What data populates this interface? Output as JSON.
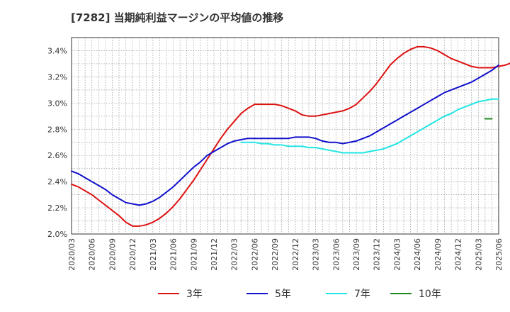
{
  "title": "[7282]  当期純利益マージンの平均値の推移",
  "chart_data": {
    "type": "line",
    "x_ticks": [
      "2020/03",
      "2020/06",
      "2020/09",
      "2020/12",
      "2021/03",
      "2021/06",
      "2021/09",
      "2021/12",
      "2022/03",
      "2022/06",
      "2022/09",
      "2022/12",
      "2023/03",
      "2023/06",
      "2023/09",
      "2023/12",
      "2024/03",
      "2024/06",
      "2024/09",
      "2024/12",
      "2025/03",
      "2025/06"
    ],
    "y_ticks": [
      "2.0%",
      "2.2%",
      "2.4%",
      "2.6%",
      "2.8%",
      "3.0%",
      "3.2%",
      "3.4%"
    ],
    "ylim": [
      2.0,
      3.5
    ],
    "grid": true,
    "legend_position": "bottom",
    "series": [
      {
        "name": "3年",
        "color": "#dd1111",
        "values": [
          2.38,
          2.36,
          2.33,
          2.3,
          2.26,
          2.22,
          2.18,
          2.14,
          2.09,
          2.06,
          2.06,
          2.07,
          2.09,
          2.12,
          2.16,
          2.21,
          2.27,
          2.34,
          2.41,
          2.49,
          2.57,
          2.65,
          2.73,
          2.8,
          2.86,
          2.92,
          2.96,
          2.99,
          2.99,
          2.99,
          2.99,
          2.98,
          2.96,
          2.94,
          2.91,
          2.9,
          2.9,
          2.91,
          2.92,
          2.93,
          2.94,
          2.96,
          2.99,
          3.04,
          3.09,
          3.15,
          3.22,
          3.29,
          3.34,
          3.38,
          3.41,
          3.43,
          3.43,
          3.42,
          3.4,
          3.37,
          3.34,
          3.32,
          3.3,
          3.28,
          3.27,
          3.27,
          3.27,
          3.28,
          3.29,
          3.31
        ]
      },
      {
        "name": "5年",
        "color": "#1111cc",
        "values": [
          2.48,
          2.46,
          2.43,
          2.4,
          2.37,
          2.34,
          2.3,
          2.27,
          2.24,
          2.23,
          2.22,
          2.23,
          2.25,
          2.28,
          2.32,
          2.36,
          2.41,
          2.46,
          2.51,
          2.55,
          2.6,
          2.63,
          2.66,
          2.69,
          2.71,
          2.72,
          2.73,
          2.73,
          2.73,
          2.73,
          2.73,
          2.73,
          2.73,
          2.74,
          2.74,
          2.74,
          2.73,
          2.71,
          2.7,
          2.7,
          2.69,
          2.7,
          2.71,
          2.73,
          2.75,
          2.78,
          2.81,
          2.84,
          2.87,
          2.9,
          2.93,
          2.96,
          2.99,
          3.02,
          3.05,
          3.08,
          3.1,
          3.12,
          3.14,
          3.16,
          3.19,
          3.22,
          3.25,
          3.29
        ]
      },
      {
        "name": "7年",
        "color": "#22e5e5",
        "start_index": 25,
        "values": [
          2.7,
          2.7,
          2.7,
          2.69,
          2.69,
          2.68,
          2.68,
          2.67,
          2.67,
          2.67,
          2.66,
          2.66,
          2.65,
          2.64,
          2.63,
          2.62,
          2.62,
          2.62,
          2.62,
          2.63,
          2.64,
          2.65,
          2.67,
          2.69,
          2.72,
          2.75,
          2.78,
          2.81,
          2.84,
          2.87,
          2.9,
          2.92,
          2.95,
          2.97,
          2.99,
          3.01,
          3.02,
          3.03,
          3.03
        ]
      },
      {
        "name": "10年",
        "color": "#228822",
        "start_index": 61,
        "values": [
          2.88,
          2.88
        ]
      }
    ]
  }
}
